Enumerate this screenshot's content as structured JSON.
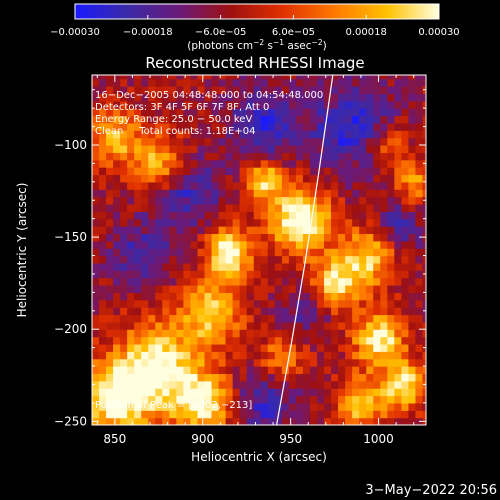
{
  "chart_data": {
    "type": "heatmap",
    "title": "Reconstructed RHESSI Image",
    "xlabel": "Heliocentric X (arcsec)",
    "ylabel": "Heliocentric Y (arcsec)",
    "xlim": [
      837,
      1027
    ],
    "ylim": [
      -252,
      -62
    ],
    "x_ticks": [
      850,
      900,
      950,
      1000
    ],
    "x_tick_labels": [
      "850",
      "900",
      "950",
      "1000"
    ],
    "y_ticks": [
      -100,
      -150,
      -200,
      -250
    ],
    "y_tick_labels": [
      "−100",
      "−150",
      "−200",
      "−250"
    ],
    "colorbar": {
      "min": -0.0003,
      "max": 0.0003,
      "ticks": [
        -0.0003,
        -0.00018,
        -6e-05,
        6e-05,
        0.00018,
        0.0003
      ],
      "tick_labels": [
        "−0.00030",
        "−0.00018",
        "−6.0e−05",
        "6.0e−05",
        "0.00018",
        "0.00030"
      ],
      "units_main": "(photons cm",
      "units_sup1": "−2",
      "units_mid": " s",
      "units_sup2": "−1",
      "units_mid2": " asec",
      "units_sup3": "−2",
      "units_end": ")",
      "colors": [
        "#1a1aff",
        "#3a2aa8",
        "#6a1a7a",
        "#a01010",
        "#e03000",
        "#ff7a00",
        "#ffc000",
        "#ffffe0"
      ]
    },
    "annotations": {
      "time_range": "16−Dec−2005 04:48:48.000 to 04:54:48.000",
      "detectors": "Detectors: 3F 4F 5F 6F 7F 8F, Att 0",
      "energy": "Energy Range: 25.0 − 50.0 keV",
      "clean": "Clean     Total counts: 1.18E+04",
      "peak": "Position of Peak = [1002,−213]"
    },
    "limb_curve": [
      [
        942,
        -252
      ],
      [
        950,
        -210
      ],
      [
        958,
        -165
      ],
      [
        966,
        -115
      ],
      [
        974,
        -62
      ]
    ],
    "sources": [
      {
        "x": 955,
        "y": -140,
        "amp": 1.0,
        "w": 12
      },
      {
        "x": 915,
        "y": -158,
        "amp": 0.95,
        "w": 9
      },
      {
        "x": 935,
        "y": -118,
        "amp": 0.7,
        "w": 8
      },
      {
        "x": 875,
        "y": -110,
        "amp": 0.65,
        "w": 11
      },
      {
        "x": 850,
        "y": -95,
        "amp": 0.6,
        "w": 10
      },
      {
        "x": 905,
        "y": -190,
        "amp": 0.7,
        "w": 12
      },
      {
        "x": 875,
        "y": -220,
        "amp": 0.85,
        "w": 16
      },
      {
        "x": 850,
        "y": -238,
        "amp": 0.85,
        "w": 14
      },
      {
        "x": 900,
        "y": -240,
        "amp": 0.75,
        "w": 12
      },
      {
        "x": 975,
        "y": -175,
        "amp": 0.75,
        "w": 10
      },
      {
        "x": 995,
        "y": -160,
        "amp": 0.7,
        "w": 11
      },
      {
        "x": 1000,
        "y": -205,
        "amp": 0.85,
        "w": 10
      },
      {
        "x": 1015,
        "y": -230,
        "amp": 0.75,
        "w": 9
      },
      {
        "x": 990,
        "y": -240,
        "amp": 0.65,
        "w": 10
      },
      {
        "x": 1020,
        "y": -120,
        "amp": 0.5,
        "w": 8
      },
      {
        "x": 945,
        "y": -215,
        "amp": 0.45,
        "w": 9
      },
      {
        "x": 1005,
        "y": -100,
        "amp": 0.45,
        "w": 8
      }
    ],
    "negatives": [
      {
        "x": 890,
        "y": -125,
        "amp": 0.5,
        "w": 14
      },
      {
        "x": 935,
        "y": -90,
        "amp": 0.55,
        "w": 14
      },
      {
        "x": 985,
        "y": -90,
        "amp": 0.6,
        "w": 16
      },
      {
        "x": 865,
        "y": -160,
        "amp": 0.45,
        "w": 12
      },
      {
        "x": 935,
        "y": -240,
        "amp": 0.5,
        "w": 12
      },
      {
        "x": 1010,
        "y": -145,
        "amp": 0.45,
        "w": 10
      },
      {
        "x": 960,
        "y": -190,
        "amp": 0.35,
        "w": 10
      }
    ]
  },
  "footer": {
    "date": "3−May−2022 20:56"
  }
}
